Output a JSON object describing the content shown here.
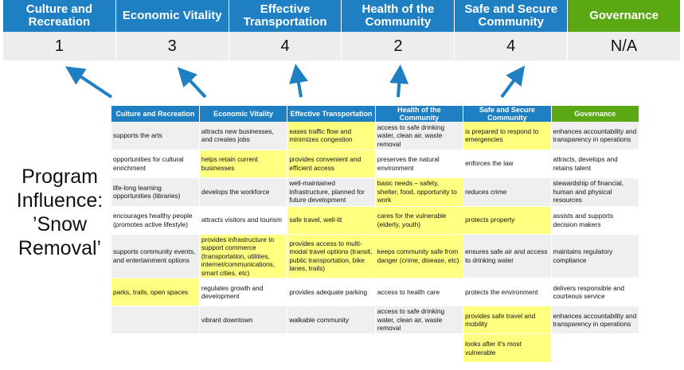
{
  "header": {
    "categories": [
      "Culture and Recreation",
      "Economic Vitality",
      "Effective Transportation",
      "Health of the Community",
      "Safe and Secure Community",
      "Governance"
    ],
    "scores": [
      "1",
      "3",
      "4",
      "2",
      "4",
      "N/A"
    ]
  },
  "program_label": "Program Influence: ’Snow Removal’",
  "colors": {
    "blue": "#1e7fc2",
    "green": "#5aa812",
    "highlight": "#ffff80",
    "arrow": "#1e7fc2"
  },
  "table": {
    "headers": [
      "Culture and Recreation",
      "Economic Vitality",
      "Effective Transportation",
      "Health of the Community",
      "Safe and Secure Community",
      "Governance"
    ],
    "rows": [
      [
        {
          "t": "supports the arts",
          "h": false
        },
        {
          "t": "attracts new businesses, and creates jobs",
          "h": false
        },
        {
          "t": "eases traffic flow and minimizes congestion",
          "h": true
        },
        {
          "t": "access to safe drinking water, clean air, waste removal",
          "h": false
        },
        {
          "t": "is prepared to respond to emergencies",
          "h": true
        },
        {
          "t": "enhances accountability and transparency in operations",
          "h": false
        }
      ],
      [
        {
          "t": "opportunities for cultural enrichment",
          "h": false
        },
        {
          "t": "helps retain current businesses",
          "h": true
        },
        {
          "t": "provides convenient and efficient access",
          "h": true
        },
        {
          "t": "preserves the natural environment",
          "h": false
        },
        {
          "t": "enforces the law",
          "h": false
        },
        {
          "t": "attracts, develops and retains talent",
          "h": false
        }
      ],
      [
        {
          "t": "life-long learning opportunities (libraries)",
          "h": false
        },
        {
          "t": "develops the workforce",
          "h": false
        },
        {
          "t": "well-maintained infrastructure, planned for future development",
          "h": false
        },
        {
          "t": "basic needs – safety, shelter, food, opportunity to work",
          "h": true
        },
        {
          "t": "reduces crime",
          "h": false
        },
        {
          "t": "stewardship of financial, human and physical resources",
          "h": false
        }
      ],
      [
        {
          "t": "encourages healthy people (promotes active lifestyle)",
          "h": false
        },
        {
          "t": "attracts visitors and tourism",
          "h": false
        },
        {
          "t": "safe travel, well-lit",
          "h": true
        },
        {
          "t": "cares for the vulnerable (elderly, youth)",
          "h": true
        },
        {
          "t": "protects property",
          "h": true
        },
        {
          "t": "assists and supports decision makers",
          "h": false
        }
      ],
      [
        {
          "t": "supports community events, and entertainment options",
          "h": false
        },
        {
          "t": "provides infrastructure to support commerce (transportation, utilities, internet/communications, smart cities, etc)",
          "h": true
        },
        {
          "t": "provides access to multi-modal travel options (transit, public transportation, bike lanes, trails)",
          "h": true
        },
        {
          "t": "keeps community safe from danger (crime, disease, etc)",
          "h": true
        },
        {
          "t": "ensures safe air and access to drinking water",
          "h": false
        },
        {
          "t": "maintains regulatory compliance",
          "h": false
        }
      ],
      [
        {
          "t": "parks, trails, open spaces",
          "h": true
        },
        {
          "t": "regulates growth and development",
          "h": false
        },
        {
          "t": "provides adequate parking",
          "h": false
        },
        {
          "t": "access to health care",
          "h": false
        },
        {
          "t": "protects the environment",
          "h": false
        },
        {
          "t": "delivers responsible and courteous service",
          "h": false
        }
      ],
      [
        {
          "t": "",
          "h": false
        },
        {
          "t": "vibrant downtown",
          "h": false
        },
        {
          "t": "walkable community",
          "h": false
        },
        {
          "t": "access to safe drinking water, clean air, waste removal",
          "h": false
        },
        {
          "t": "provides safe travel and mobility",
          "h": true
        },
        {
          "t": "enhances accountability and transparency in operations",
          "h": false
        }
      ],
      [
        {
          "t": "",
          "h": false
        },
        {
          "t": "",
          "h": false
        },
        {
          "t": "",
          "h": false
        },
        {
          "t": "",
          "h": false
        },
        {
          "t": "looks after it's most vulnerable",
          "h": true
        },
        {
          "t": "",
          "h": false
        }
      ]
    ]
  }
}
